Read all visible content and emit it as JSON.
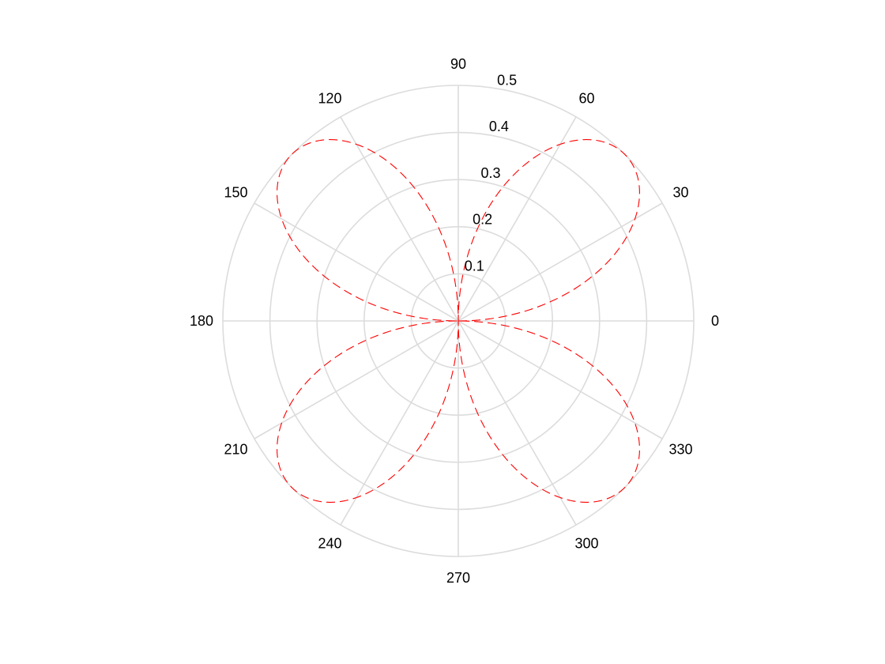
{
  "chart_data": {
    "type": "polar",
    "title": "",
    "theta_unit": "degrees",
    "theta_ticks": [
      0,
      30,
      60,
      90,
      120,
      150,
      180,
      210,
      240,
      270,
      300,
      330
    ],
    "theta_tick_labels": [
      "0",
      "30",
      "60",
      "90",
      "120",
      "150",
      "180",
      "210",
      "240",
      "270",
      "300",
      "330"
    ],
    "r_ticks": [
      0.1,
      0.2,
      0.3,
      0.4,
      0.5
    ],
    "r_tick_labels": [
      "0.1",
      "0.2",
      "0.3",
      "0.4",
      "0.5"
    ],
    "r_tick_label_angle_deg": 80,
    "rlim": [
      0,
      0.5
    ],
    "grid": true,
    "series": [
      {
        "function": "r = 0.5 * |sin(2*theta)|",
        "theta_deg": [
          0,
          15,
          30,
          45,
          60,
          75,
          90,
          105,
          120,
          135,
          150,
          165,
          180,
          195,
          210,
          225,
          240,
          255,
          270,
          285,
          300,
          315,
          330,
          345,
          360
        ],
        "r": [
          0,
          0.25,
          0.433,
          0.5,
          0.433,
          0.25,
          0,
          0.25,
          0.433,
          0.5,
          0.433,
          0.25,
          0,
          0.25,
          0.433,
          0.5,
          0.433,
          0.25,
          0,
          0.25,
          0.433,
          0.5,
          0.433,
          0.25,
          0
        ],
        "line_style": "dashed",
        "color": "#ff0000"
      }
    ]
  }
}
